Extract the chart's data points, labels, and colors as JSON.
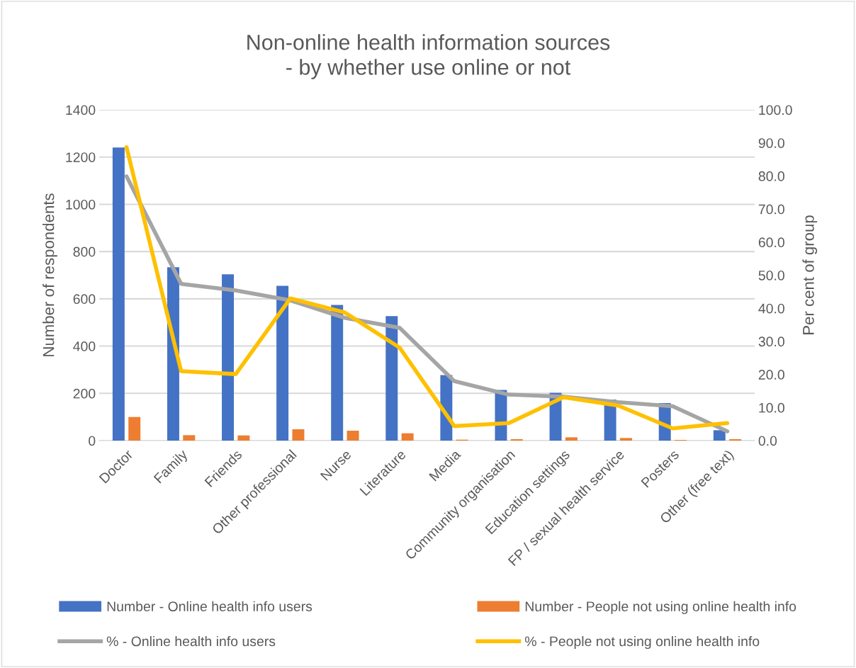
{
  "chart_data": {
    "type": "bar",
    "title": "Non-online health information sources\n- by whether use online or not",
    "ylabel": "Number of respondents",
    "y2label": "Per cent of group",
    "categories": [
      "Doctor",
      "Family",
      "Friends",
      "Other professional",
      "Nurse",
      "Literature",
      "Media",
      "Community organisation",
      "Education settings",
      "FP / sexual health service",
      "Posters",
      "Other (free text)"
    ],
    "series": [
      {
        "name": "Number - Online health info users",
        "color": "#4472c4",
        "values": [
          1240,
          734,
          704,
          655,
          574,
          527,
          277,
          214,
          202,
          174,
          159,
          44
        ]
      },
      {
        "name": "Number - People not using online health info",
        "color": "#ed7d31",
        "values": [
          100,
          23,
          22,
          48,
          42,
          31,
          4,
          6,
          14,
          11,
          3,
          6
        ]
      },
      {
        "name": "% - Online health info users",
        "type": "line",
        "axis": "y2",
        "color": "#a5a5a5",
        "values": [
          79.9,
          47.4,
          45.4,
          42.4,
          37.1,
          34.1,
          18.0,
          13.9,
          13.3,
          11.6,
          10.4,
          2.8
        ]
      },
      {
        "name": "% - People not using online health info",
        "type": "line",
        "axis": "y2",
        "color": "#ffc000",
        "values": [
          88.7,
          21.0,
          20.1,
          43.0,
          38.7,
          28.1,
          4.4,
          5.3,
          13.1,
          10.6,
          3.7,
          5.3
        ]
      }
    ],
    "ylim": [
      0,
      1400
    ],
    "yticks": [
      0,
      200,
      400,
      600,
      800,
      1000,
      1200,
      1400
    ],
    "y2lim": [
      0,
      100
    ],
    "y2ticks": [
      {
        "value": 0,
        "label": "0.0"
      },
      {
        "value": 10,
        "label": "10.0"
      },
      {
        "value": 20,
        "label": "20.0"
      },
      {
        "value": 30,
        "label": "30.0"
      },
      {
        "value": 40,
        "label": "40.0"
      },
      {
        "value": 50,
        "label": "50.0"
      },
      {
        "value": 60,
        "label": "60.0"
      },
      {
        "value": 70,
        "label": "70.0"
      },
      {
        "value": 80,
        "label": "80.0"
      },
      {
        "value": 90,
        "label": "90.0"
      },
      {
        "value": 100,
        "label": "100.0"
      }
    ],
    "grid": "y",
    "legend": "bottom"
  }
}
